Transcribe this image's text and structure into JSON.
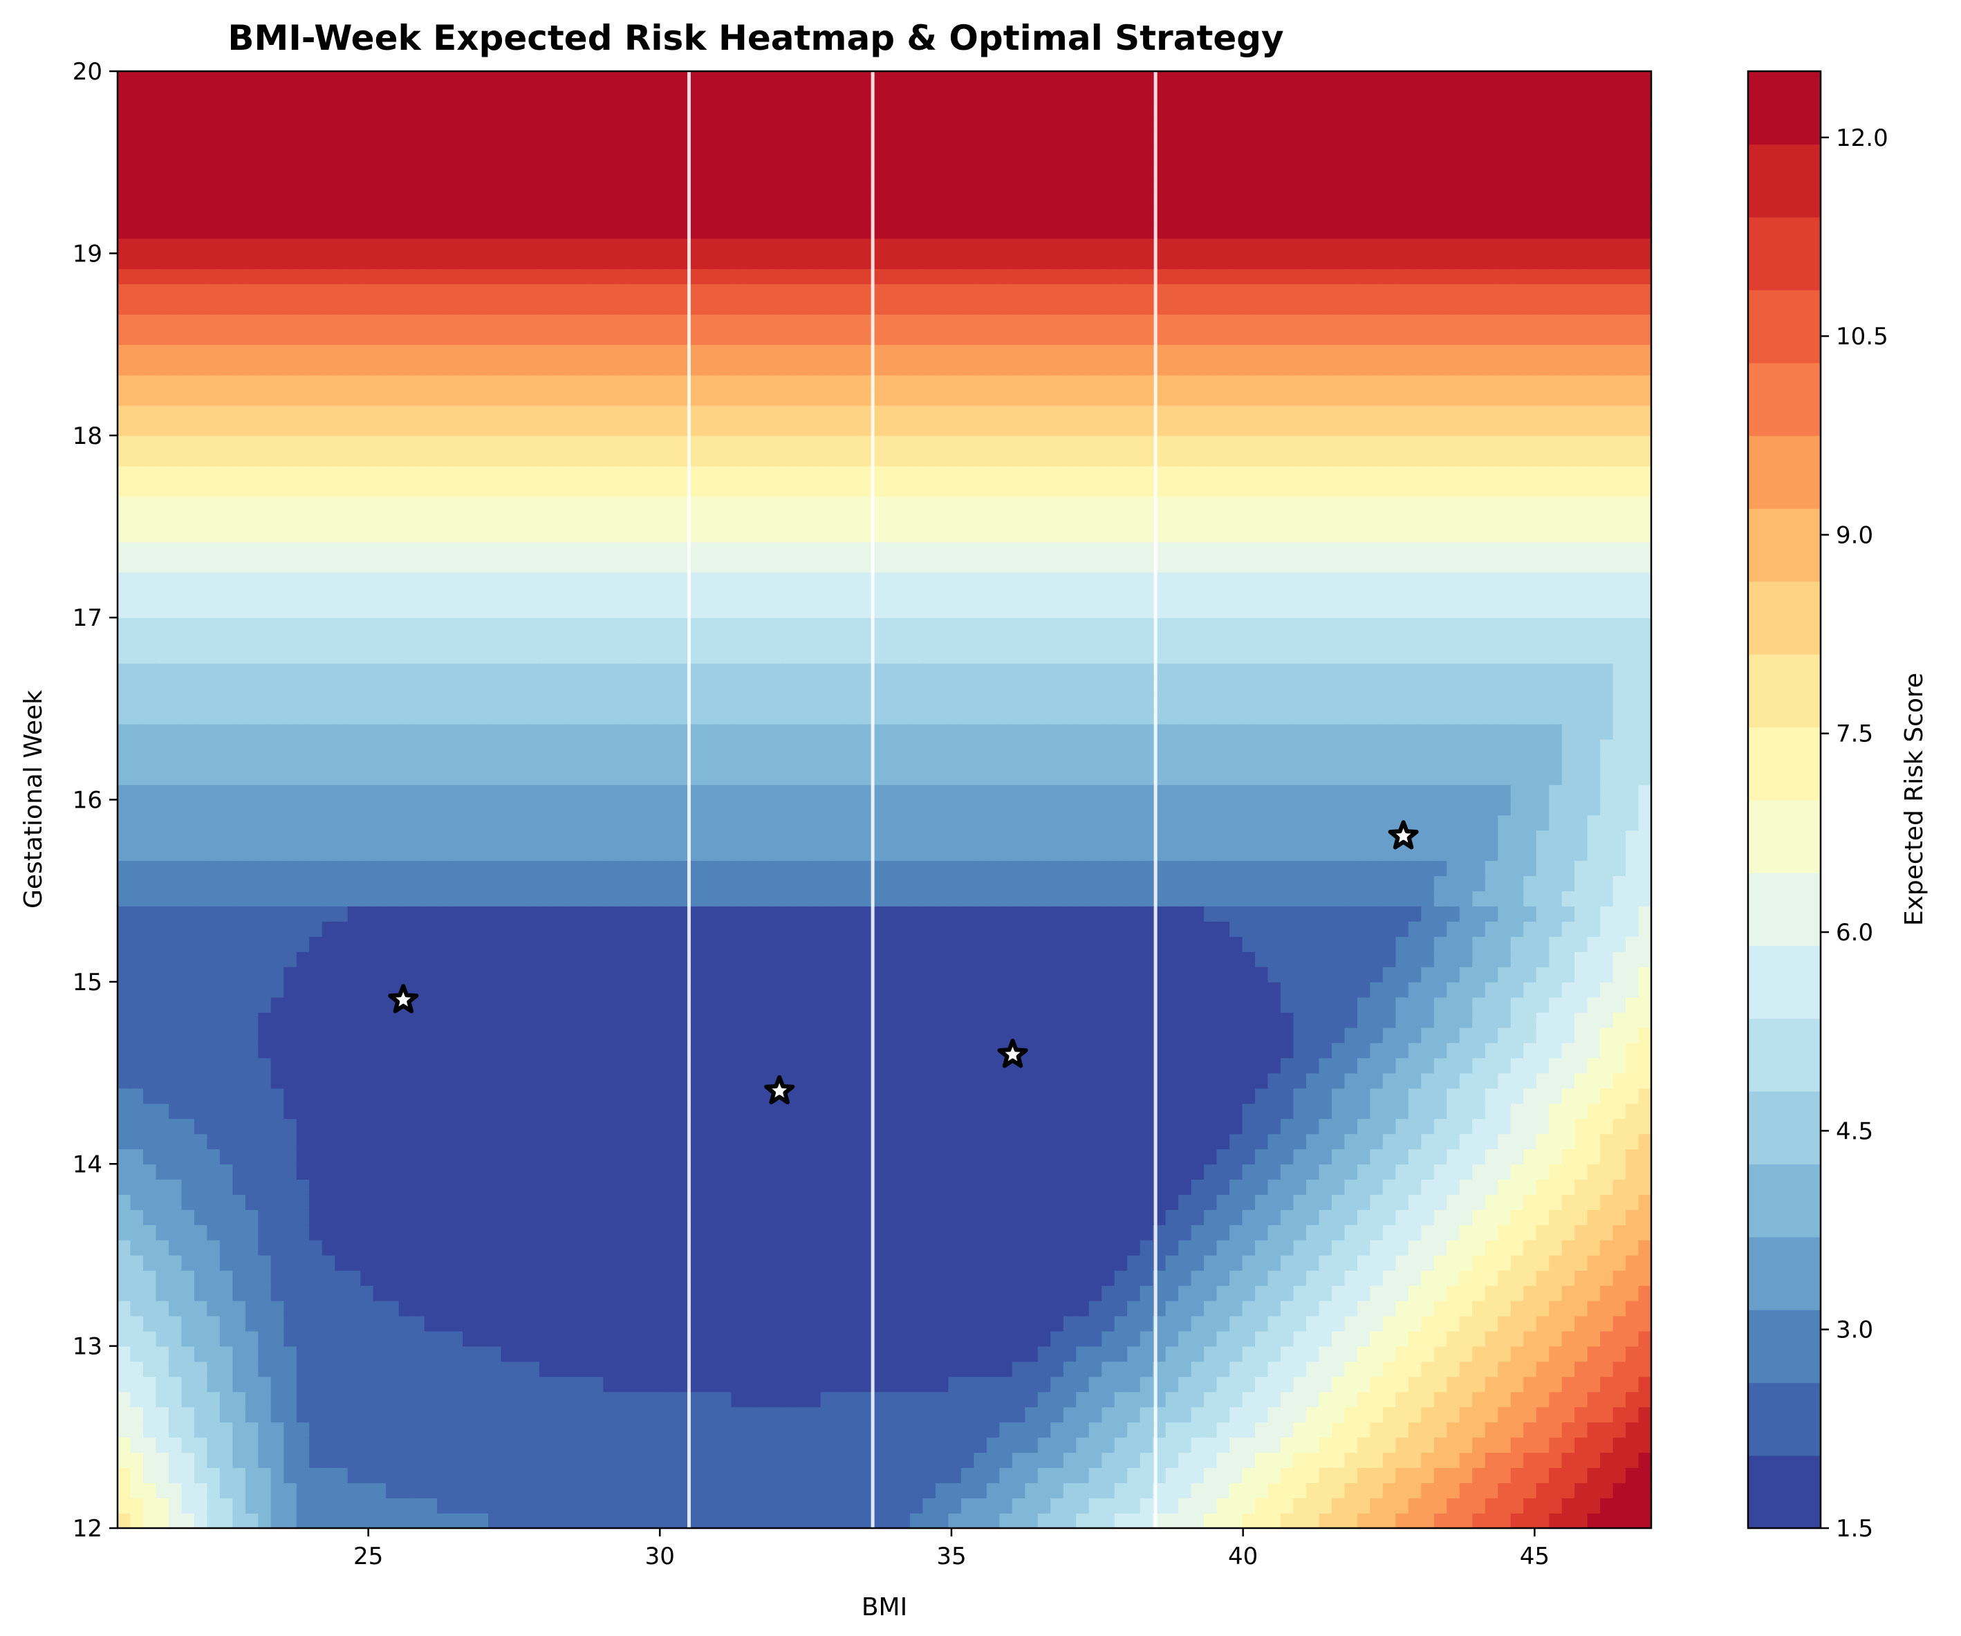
{
  "chart_data": {
    "type": "heatmap",
    "title": "BMI-Week Expected Risk Heatmap & Optimal Strategy",
    "xlabel": "BMI",
    "ylabel": "Gestational Week",
    "xlim": [
      20.7,
      47.0
    ],
    "ylim": [
      12,
      20
    ],
    "x_ticks": [
      25,
      30,
      35,
      40,
      45
    ],
    "y_ticks": [
      12,
      13,
      14,
      15,
      16,
      17,
      18,
      19,
      20
    ],
    "colorbar": {
      "label": "Expected Risk Score",
      "range": [
        1.5,
        12.5
      ],
      "ticks": [
        "1.5",
        "3.0",
        "4.5",
        "6.0",
        "7.5",
        "9.0",
        "10.5",
        "12.0"
      ],
      "colormap": [
        "#313695",
        "#4575b4",
        "#74add1",
        "#abd9e9",
        "#e0f3f8",
        "#ffffbf",
        "#fee090",
        "#fdae61",
        "#f46d43",
        "#d73027",
        "#a50026"
      ],
      "levels": 21
    },
    "group_boundaries_bmi": [
      30.5,
      33.65,
      38.5
    ],
    "optimal_points": [
      {
        "bmi": 25.6,
        "week": 14.9
      },
      {
        "bmi": 32.05,
        "week": 14.4
      },
      {
        "bmi": 36.05,
        "week": 14.6
      },
      {
        "bmi": 42.75,
        "week": 15.8
      }
    ]
  }
}
